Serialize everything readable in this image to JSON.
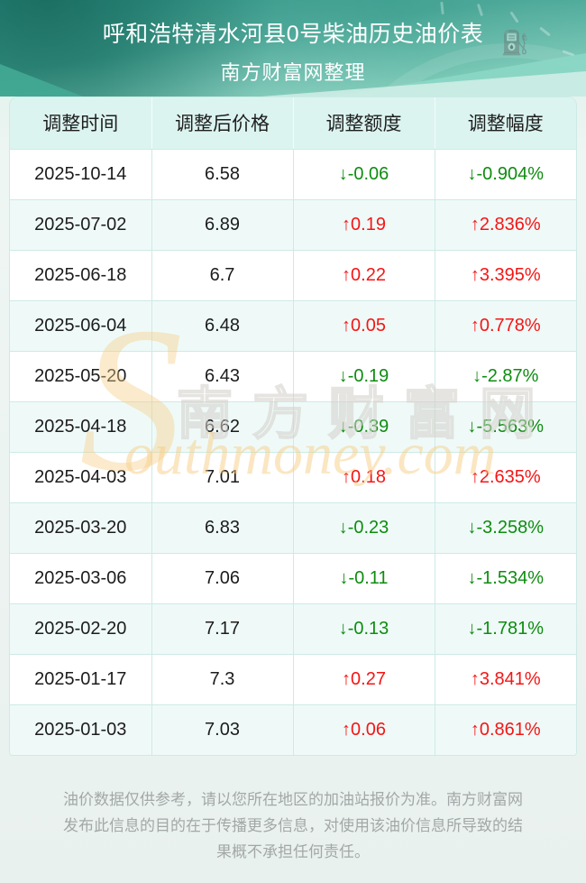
{
  "header": {
    "title": "呼和浩特清水河县0号柴油历史油价表",
    "subtitle": "南方财富网整理"
  },
  "table": {
    "columns": [
      "调整时间",
      "调整后价格",
      "调整额度",
      "调整幅度"
    ],
    "rows": [
      {
        "date": "2025-10-14",
        "price": "6.58",
        "change": "↓-0.06",
        "pct": "↓-0.904%",
        "dir": "down"
      },
      {
        "date": "2025-07-02",
        "price": "6.89",
        "change": "↑0.19",
        "pct": "↑2.836%",
        "dir": "up"
      },
      {
        "date": "2025-06-18",
        "price": "6.7",
        "change": "↑0.22",
        "pct": "↑3.395%",
        "dir": "up"
      },
      {
        "date": "2025-06-04",
        "price": "6.48",
        "change": "↑0.05",
        "pct": "↑0.778%",
        "dir": "up"
      },
      {
        "date": "2025-05-20",
        "price": "6.43",
        "change": "↓-0.19",
        "pct": "↓-2.87%",
        "dir": "down"
      },
      {
        "date": "2025-04-18",
        "price": "6.62",
        "change": "↓-0.39",
        "pct": "↓-5.563%",
        "dir": "down"
      },
      {
        "date": "2025-04-03",
        "price": "7.01",
        "change": "↑0.18",
        "pct": "↑2.635%",
        "dir": "up"
      },
      {
        "date": "2025-03-20",
        "price": "6.83",
        "change": "↓-0.23",
        "pct": "↓-3.258%",
        "dir": "down"
      },
      {
        "date": "2025-03-06",
        "price": "7.06",
        "change": "↓-0.11",
        "pct": "↓-1.534%",
        "dir": "down"
      },
      {
        "date": "2025-02-20",
        "price": "7.17",
        "change": "↓-0.13",
        "pct": "↓-1.781%",
        "dir": "down"
      },
      {
        "date": "2025-01-17",
        "price": "7.3",
        "change": "↑0.27",
        "pct": "↑3.841%",
        "dir": "up"
      },
      {
        "date": "2025-01-03",
        "price": "7.03",
        "change": "↑0.06",
        "pct": "↑0.861%",
        "dir": "up"
      }
    ]
  },
  "chart_data": {
    "type": "table",
    "title": "呼和浩特清水河县0号柴油历史油价表",
    "columns": [
      "调整时间",
      "调整后价格",
      "调整额度",
      "调整幅度"
    ],
    "x": [
      "2025-10-14",
      "2025-07-02",
      "2025-06-18",
      "2025-06-04",
      "2025-05-20",
      "2025-04-18",
      "2025-04-03",
      "2025-03-20",
      "2025-03-06",
      "2025-02-20",
      "2025-01-17",
      "2025-01-03"
    ],
    "series": [
      {
        "name": "调整后价格",
        "values": [
          6.58,
          6.89,
          6.7,
          6.48,
          6.43,
          6.62,
          7.01,
          6.83,
          7.06,
          7.17,
          7.3,
          7.03
        ]
      },
      {
        "name": "调整额度",
        "values": [
          -0.06,
          0.19,
          0.22,
          0.05,
          -0.19,
          -0.39,
          0.18,
          -0.23,
          -0.11,
          -0.13,
          0.27,
          0.06
        ]
      },
      {
        "name": "调整幅度(%)",
        "values": [
          -0.904,
          2.836,
          3.395,
          0.778,
          -2.87,
          -5.563,
          2.635,
          -3.258,
          -1.534,
          -1.781,
          3.841,
          0.861
        ]
      }
    ]
  },
  "watermark": {
    "initial": "S",
    "cn": "南方财富网",
    "en": "outhmoney.com"
  },
  "footer": {
    "disclaimer": "油价数据仅供参考，请以您所在地区的加油站报价为准。南方财富网发布此信息的目的在于传播更多信息，对使用该油价信息所导致的结果概不承担任何责任。"
  },
  "icons": {
    "up_arrow": "↑",
    "down_arrow": "↓",
    "fuel_pump": "⛽"
  },
  "colors": {
    "up_red": "#f51515",
    "down_green": "#0e8c10",
    "hero_teal_dark": "#2a9283",
    "hero_teal_light": "#a6dbc9",
    "table_header_bg": "#dcf4f0",
    "row_tint_bg": "#effaf8",
    "table_border": "#cdeae6",
    "watermark_orange": "#f6cd86",
    "footer_text": "#a2a8a7"
  }
}
